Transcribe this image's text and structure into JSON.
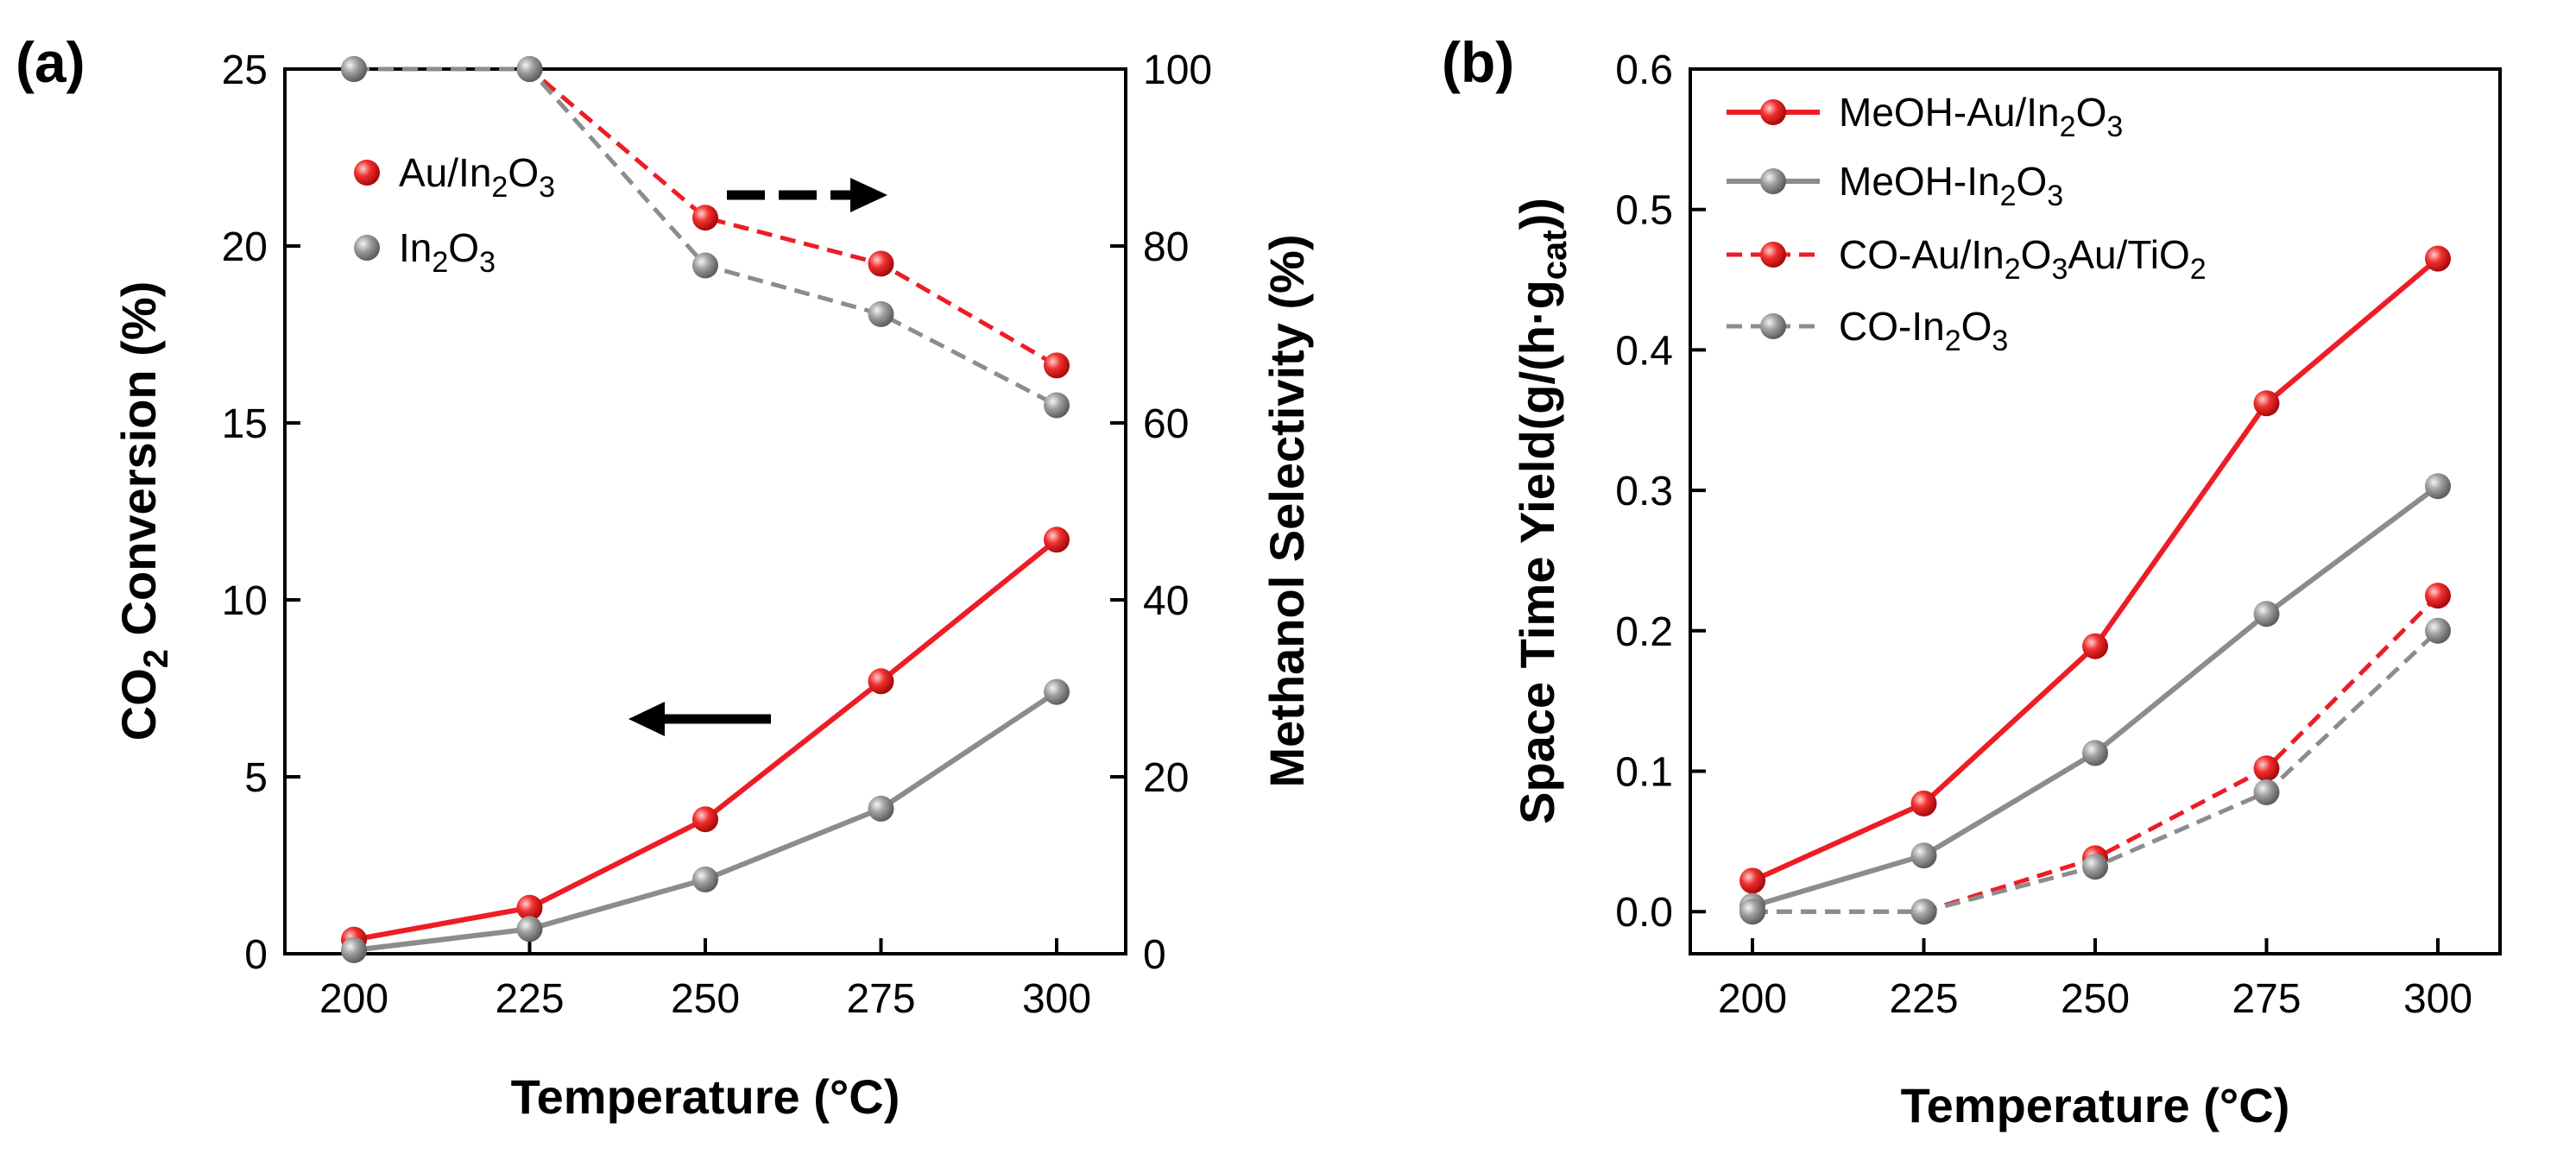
{
  "panel_a_label": "(a)",
  "panel_b_label": "(b)",
  "chart_data": [
    {
      "id": "a",
      "type": "line",
      "title": "",
      "xlabel": "Temperature (°C)",
      "x": [
        200,
        225,
        250,
        275,
        300
      ],
      "xticks": [
        "200",
        "225",
        "250",
        "275",
        "300"
      ],
      "ylabel": {
        "prefix": "CO",
        "sub": "2",
        "suffix": " Conversion (%)"
      },
      "ylim": [
        0,
        25
      ],
      "yticks": [
        "0",
        "5",
        "10",
        "15",
        "20",
        "25"
      ],
      "y2label": "Methanol Selectivity (%)",
      "y2lim": [
        0,
        100
      ],
      "y2ticks": [
        "0",
        "20",
        "40",
        "60",
        "80",
        "100"
      ],
      "legend": [
        {
          "color": "#ee1c25",
          "parts": [
            [
              "Au/In",
              ""
            ],
            [
              "2",
              "sub"
            ],
            [
              "O",
              ""
            ],
            [
              "3",
              "sub"
            ]
          ]
        },
        {
          "color": "#8c8c8c",
          "parts": [
            [
              "In",
              ""
            ],
            [
              "2",
              "sub"
            ],
            [
              "O",
              ""
            ],
            [
              "3",
              "sub"
            ]
          ]
        }
      ],
      "series": [
        {
          "name": "Au/In2O3 CO2 conversion",
          "axis": "left",
          "color": "#ee1c25",
          "dash": false,
          "values": [
            0.4,
            1.3,
            3.8,
            7.7,
            11.7
          ]
        },
        {
          "name": "In2O3 CO2 conversion",
          "axis": "left",
          "color": "#8c8c8c",
          "dash": false,
          "values": [
            0.1,
            0.7,
            2.1,
            4.1,
            7.4
          ]
        },
        {
          "name": "Au/In2O3 methanol selectivity",
          "axis": "right",
          "color": "#ee1c25",
          "dash": true,
          "values": [
            100,
            100,
            83.2,
            78,
            66.5
          ]
        },
        {
          "name": "In2O3 methanol selectivity",
          "axis": "right",
          "color": "#8c8c8c",
          "dash": true,
          "values": [
            100,
            100,
            77.8,
            72.3,
            62
          ]
        }
      ],
      "annotations": [
        "dashed arrow pointing right (selectivity axis)",
        "solid arrow pointing left (conversion axis)"
      ]
    },
    {
      "id": "b",
      "type": "line",
      "title": "",
      "xlabel": "Temperature (°C)",
      "x": [
        200,
        225,
        250,
        275,
        300
      ],
      "xticks": [
        "200",
        "225",
        "250",
        "275",
        "300"
      ],
      "ylabel": {
        "prefix": "Space Time Yield(g/(h·g",
        "sub": "cat",
        "suffix": "))"
      },
      "ylim": [
        -0.03,
        0.6
      ],
      "yticks": [
        "0.0",
        "0.1",
        "0.2",
        "0.3",
        "0.4",
        "0.5",
        "0.6"
      ],
      "legend": [
        {
          "color": "#ee1c25",
          "dash": false,
          "parts": [
            [
              "MeOH-Au/In",
              ""
            ],
            [
              "2",
              "sub"
            ],
            [
              "O",
              ""
            ],
            [
              "3",
              "sub"
            ]
          ]
        },
        {
          "color": "#8c8c8c",
          "dash": false,
          "parts": [
            [
              "MeOH-In",
              ""
            ],
            [
              "2",
              "sub"
            ],
            [
              "O",
              ""
            ],
            [
              "3",
              "sub"
            ]
          ]
        },
        {
          "color": "#ee1c25",
          "dash": true,
          "parts": [
            [
              "CO-Au/In",
              ""
            ],
            [
              "2",
              "sub"
            ],
            [
              "O",
              ""
            ],
            [
              "3",
              "sub"
            ],
            [
              "Au/TiO",
              ""
            ],
            [
              "2",
              "sub"
            ]
          ]
        },
        {
          "color": "#8c8c8c",
          "dash": true,
          "parts": [
            [
              "CO-In",
              ""
            ],
            [
              "2",
              "sub"
            ],
            [
              "O",
              ""
            ],
            [
              "3",
              "sub"
            ]
          ]
        }
      ],
      "series": [
        {
          "name": "MeOH-Au/In2O3",
          "color": "#ee1c25",
          "dash": false,
          "values": [
            0.022,
            0.077,
            0.189,
            0.362,
            0.465
          ]
        },
        {
          "name": "MeOH-In2O3",
          "color": "#8c8c8c",
          "dash": false,
          "values": [
            0.004,
            0.04,
            0.113,
            0.212,
            0.303
          ]
        },
        {
          "name": "CO-Au/In2O3Au/TiO2",
          "color": "#ee1c25",
          "dash": true,
          "values": [
            0.0,
            0.0,
            0.038,
            0.102,
            0.225
          ]
        },
        {
          "name": "CO-In2O3",
          "color": "#8c8c8c",
          "dash": true,
          "values": [
            0.0,
            0.0,
            0.032,
            0.085,
            0.2
          ]
        }
      ]
    }
  ]
}
